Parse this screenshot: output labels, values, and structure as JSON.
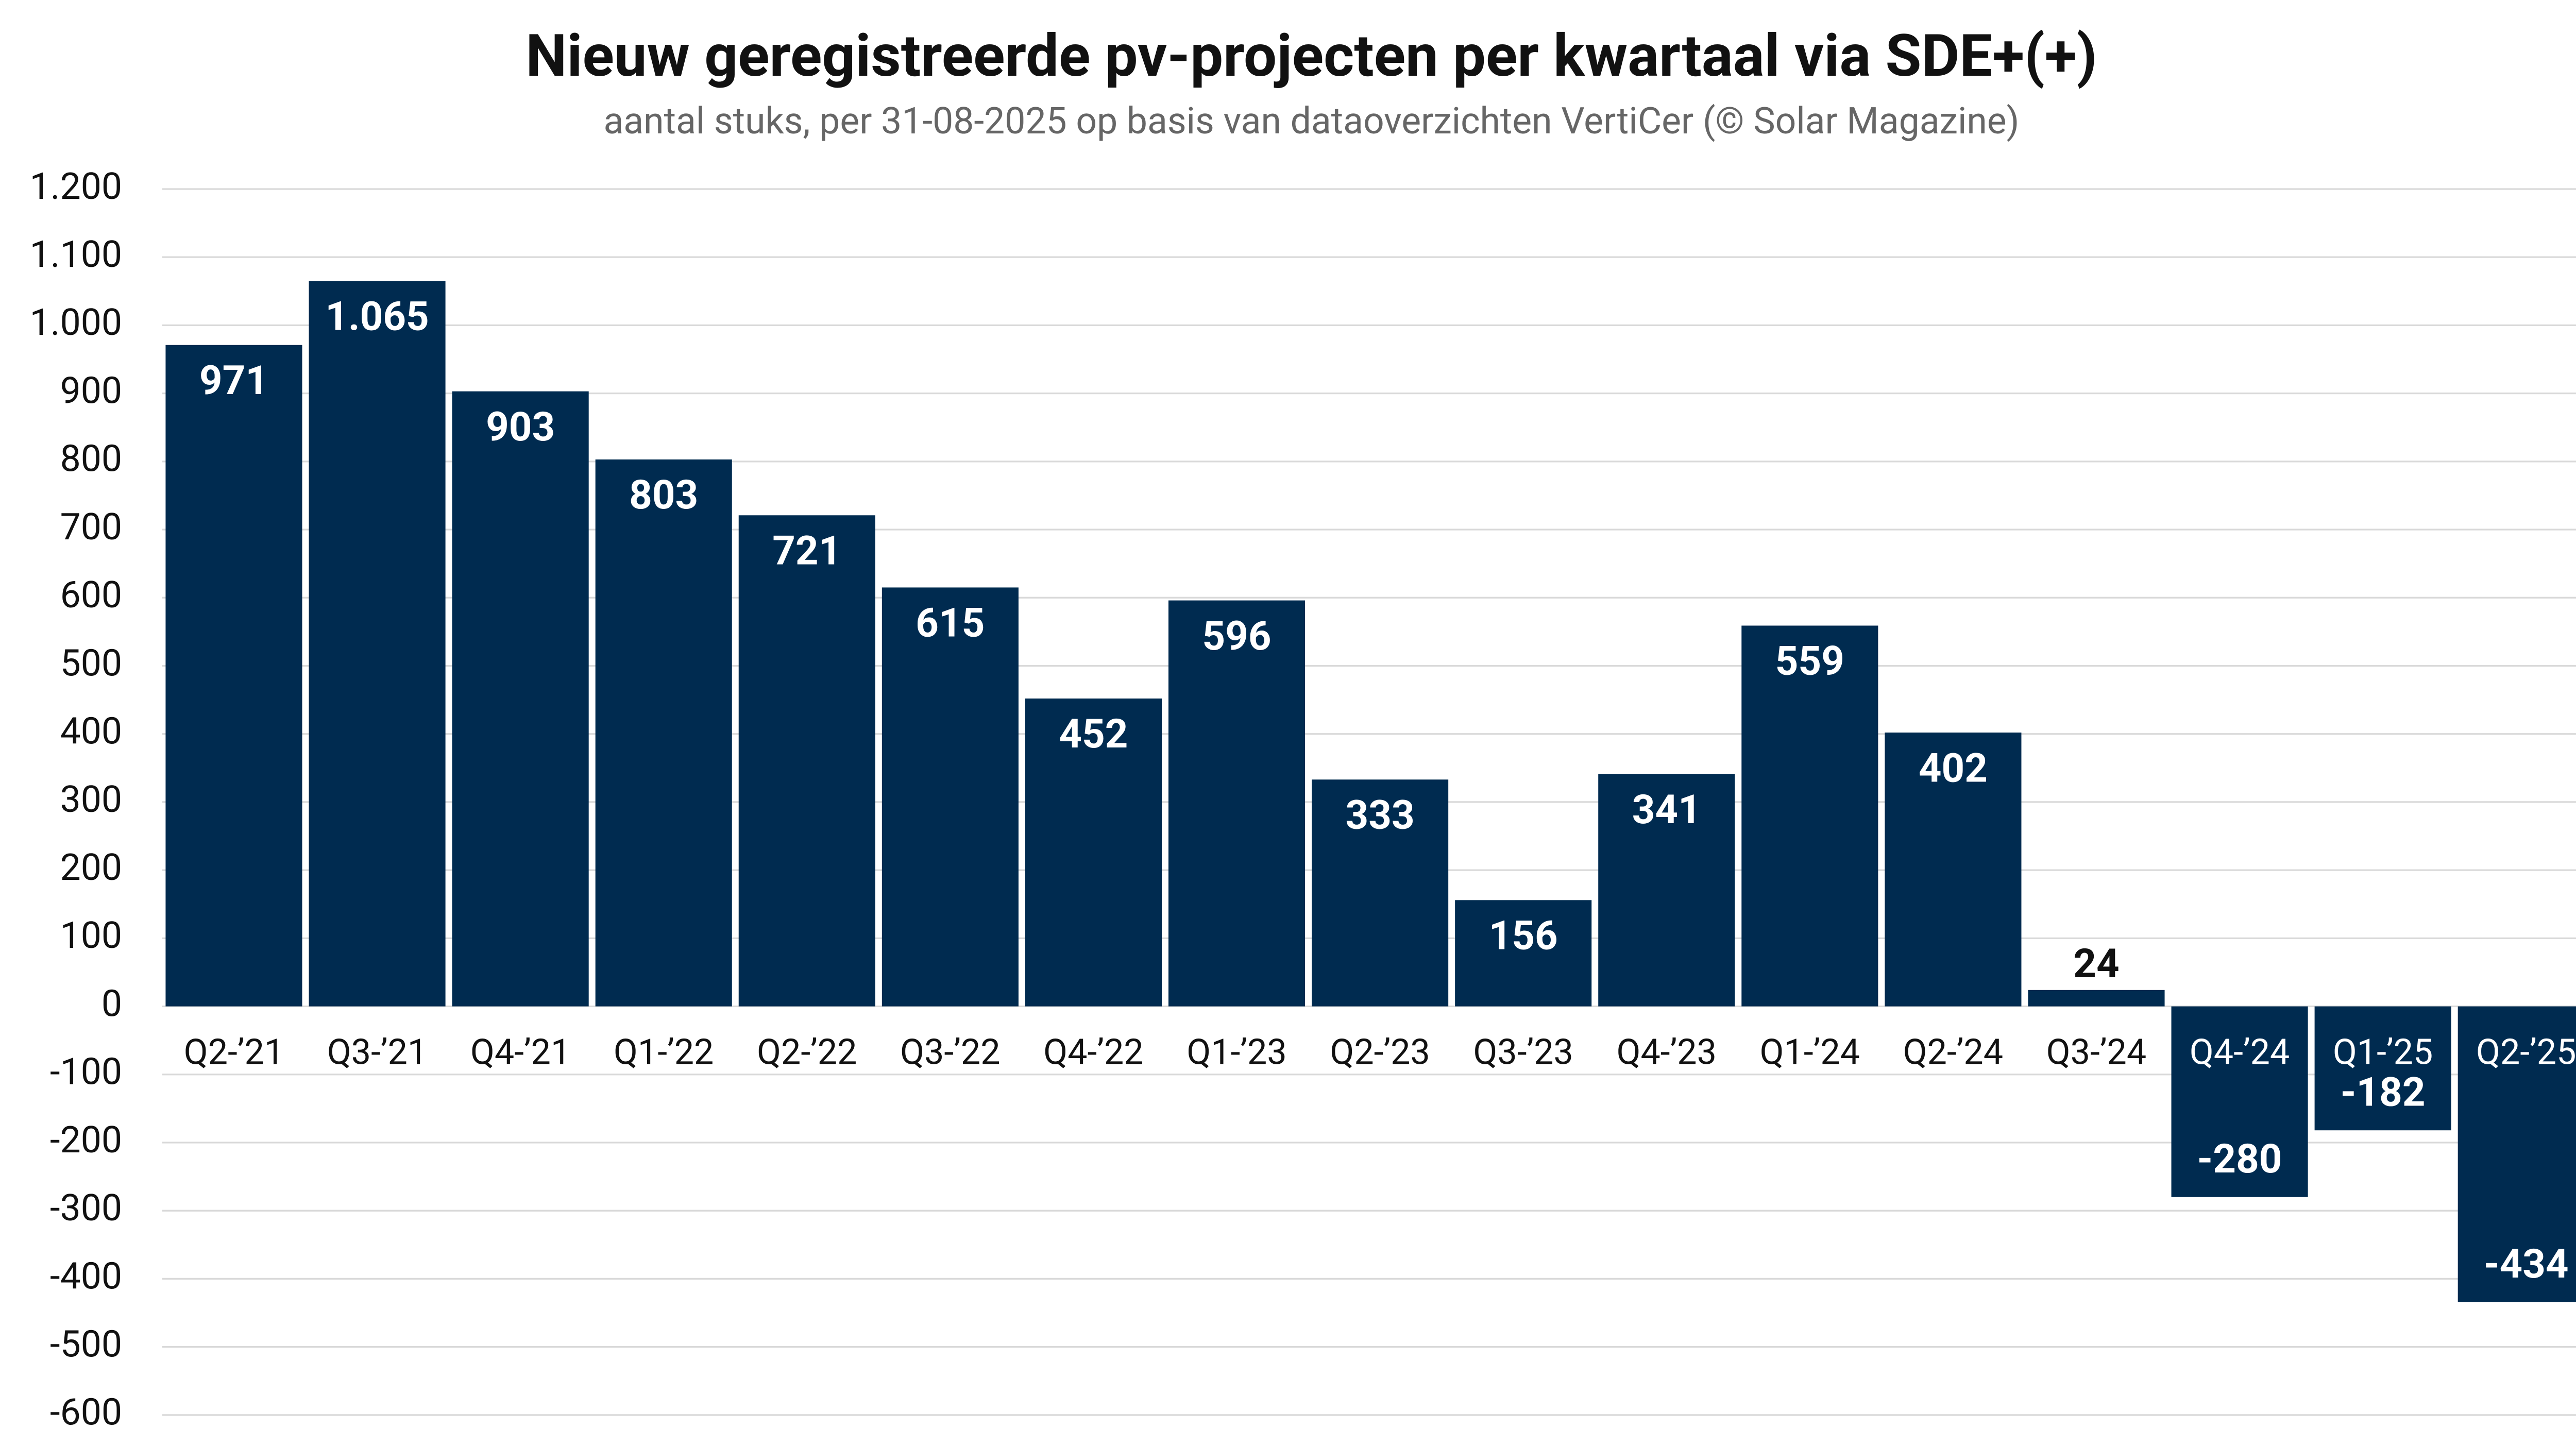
{
  "chart_data": {
    "type": "bar",
    "title": "Nieuw geregistreerde pv-projecten per kwartaal via SDE+(+)",
    "subtitle": "aantal stuks, per 31-08-2025 op basis van dataoverzichten VertiCer (© Solar Magazine)",
    "categories": [
      "Q2-’21",
      "Q3-’21",
      "Q4-’21",
      "Q1-’22",
      "Q2-’22",
      "Q3-’22",
      "Q4-’22",
      "Q1-’23",
      "Q2-’23",
      "Q3-’23",
      "Q4-’23",
      "Q1-’24",
      "Q2-’24",
      "Q3-’24",
      "Q4-’24",
      "Q1-’25",
      "Q2-’25"
    ],
    "values": [
      971,
      1065,
      903,
      803,
      721,
      615,
      452,
      596,
      333,
      156,
      341,
      559,
      402,
      24,
      -280,
      -182,
      -434
    ],
    "value_labels": [
      "971",
      "1.065",
      "903",
      "803",
      "721",
      "615",
      "452",
      "596",
      "333",
      "156",
      "341",
      "559",
      "402",
      "24",
      "-280",
      "-182",
      "-434"
    ],
    "color": "#002b50",
    "ylim": [
      -600,
      1200
    ],
    "yticks": [
      -600,
      -500,
      -400,
      -300,
      -200,
      -100,
      0,
      100,
      200,
      300,
      400,
      500,
      600,
      700,
      800,
      900,
      {
        "value": 1000,
        "label": "1.000"
      },
      {
        "value": 1100,
        "label": "1.100"
      },
      {
        "value": 1200,
        "label": "1.200"
      }
    ],
    "grid": true
  }
}
